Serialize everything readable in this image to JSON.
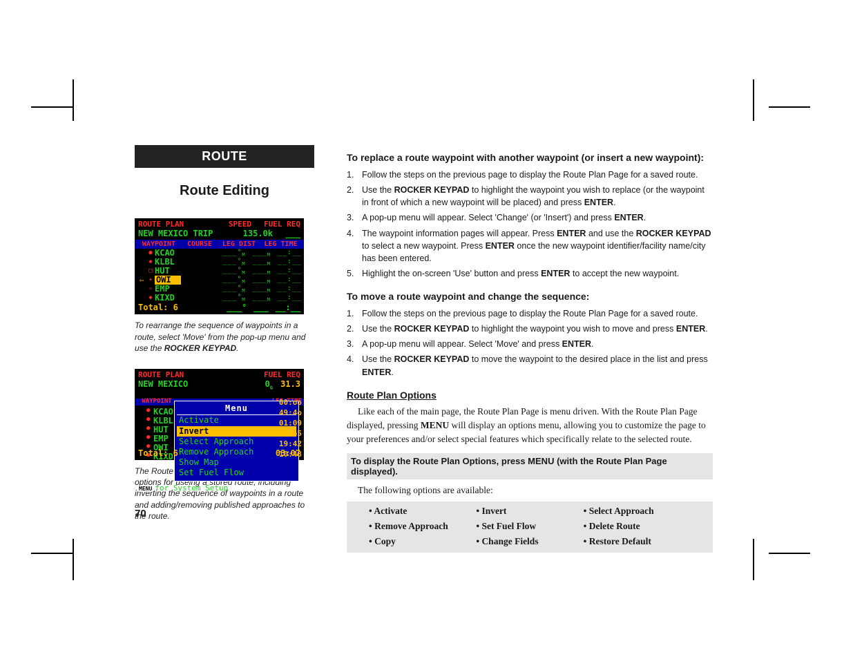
{
  "banner": "ROUTE",
  "subtitle": "Route Editing",
  "screenshot1": {
    "title": "ROUTE PLAN",
    "speed_lbl": "SPEED",
    "fuel_lbl": "FUEL REQ",
    "trip": "NEW MEXICO TRIP",
    "speed_val": "135.0k",
    "hdr": {
      "wp": "WAYPOINT",
      "course": "COURSE",
      "legdist": "LEG DIST",
      "legtime": "LEG TIME"
    },
    "rows": [
      {
        "sym": "●",
        "id": "KCAO"
      },
      {
        "sym": "◆",
        "id": "KLBL"
      },
      {
        "sym": "□",
        "id": "HUT"
      },
      {
        "sym": "✦",
        "id": "OWI",
        "hl": true,
        "arrow": "⇦"
      },
      {
        "sym": "✧",
        "id": "EMP"
      },
      {
        "sym": "◆",
        "id": "KIXD"
      }
    ],
    "total": "Total: 6"
  },
  "caption1_a": "To rearrange the sequence of waypoints in a route, select 'Move' from the pop-up menu and use the ",
  "caption1_b": "ROCKER KEYPAD",
  "caption1_c": ".",
  "screenshot2": {
    "title": "ROUTE PLAN",
    "fuel_lbl": "FUEL REQ",
    "trip": "NEW MEXICO",
    "val": "31.3",
    "menu_title": "Menu",
    "hdr_wp": "WAYPOINT",
    "menu_items": [
      "Activate",
      "Invert",
      "Select Approach",
      "Remove Approach",
      "Show Map",
      "Set Fuel Flow"
    ],
    "hl_index": 1,
    "sys_setup": "for System Setup",
    "leg_hdr": "LEG TIME",
    "times": [
      "00:oo",
      "49:4o",
      "01:09",
      "38:o5",
      "19:42",
      "10:48"
    ],
    "foot_time": "03:07",
    "left_ids": [
      "KCAO",
      "KLBL",
      "HUT",
      "EMP",
      "OWI",
      "KIXD"
    ],
    "total": "Total: 6"
  },
  "caption2": "The Route Plan Options provides additional options for useing a stored route, including inverting the sequence of waypoints in a route and adding/removing published approaches to the route.",
  "page_number": "70",
  "h_replace": "To replace a route waypoint with another waypoint (or insert a new waypoint):",
  "steps_replace": [
    "Follow the steps on the previous page to display the Route Plan Page for a saved route.",
    "Use the <b>ROCKER KEYPAD</b> to highlight the waypoint you wish to replace (or the waypoint in front of which a new waypoint will be placed) and press <b>ENTER</b>.",
    "A pop-up menu will appear. Select 'Change' (or 'Insert') and press <b>ENTER</b>.",
    "The waypoint information pages will appear. Press <b>ENTER</b> and use the <b>ROCKER KEYPAD</b> to select a new waypoint. Press <b>ENTER</b> once the new waypoint identifier/facility name/city has been entered.",
    "Highlight the on-screen 'Use' button and press <b>ENTER</b> to accept the new waypoint."
  ],
  "h_move": "To move a route waypoint and change the sequence:",
  "steps_move": [
    "Follow the steps on the previous page to display the Route Plan Page for a saved route.",
    "Use the <b>ROCKER KEYPAD</b> to highlight the waypoint you wish to move  and press <b>ENTER</b>.",
    "A pop-up menu will appear. Select 'Move' and press <b>ENTER</b>.",
    "Use the <b>ROCKER KEYPAD</b> to move the waypoint to the desired place in the list and press <b>ENTER</b>."
  ],
  "h_rpo": "Route Plan Options",
  "rpo_para": "Like each of the main page, the Route Plan Page is menu driven. With the Route Plan Page displayed, pressing <b>MENU</b> will display an options menu, allowing you to customize the page to your preferences and/or select special features which specifically relate to the selected route.",
  "rpo_display": "To display the Route Plan Options, press MENU (with the Route Plan Page displayed).",
  "rpo_follow": "The following options are available:",
  "options": [
    "Activate",
    "Invert",
    "Select Approach",
    "Remove Approach",
    "Set Fuel Flow",
    "Delete Route",
    "Copy",
    "Change Fields",
    "Restore Default"
  ]
}
